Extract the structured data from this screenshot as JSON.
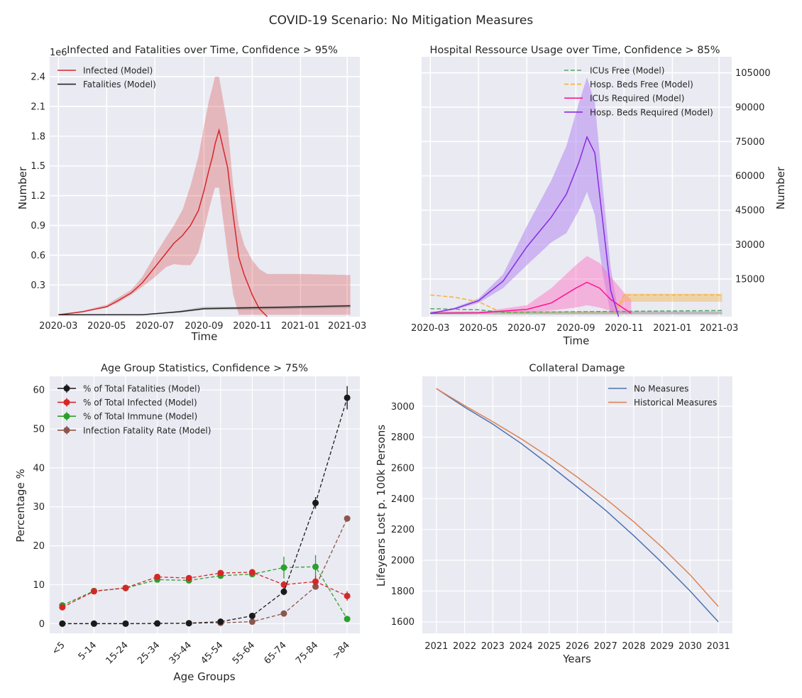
{
  "figure": {
    "title": "COVID-19 Scenario: No Mitigation Measures"
  },
  "colors": {
    "panel_bg": "#eaeaf2",
    "infected": "#d62728",
    "fatalities": "#262626",
    "icus_free": "#55a868",
    "beds_free": "#f6b23a",
    "icus_required": "#ff1493",
    "beds_required": "#8a2be2",
    "age_fatalities": "#1a1a1a",
    "age_infected": "#d62728",
    "age_immune": "#2ca02c",
    "age_ifr": "#8c564b",
    "no_measures": "#4c72b0",
    "historical": "#dd8452"
  },
  "chart_data": [
    {
      "type": "line",
      "title": "Infected and Fatalities over Time, Confidence > 95%",
      "xlabel": "Time",
      "ylabel": "Number",
      "offset_label": "1e6",
      "xlim": [
        "2020-02-19",
        "2021-03-17"
      ],
      "ylim": [
        -0.02,
        2.6
      ],
      "x_ticks": [
        "2020-03",
        "2020-05",
        "2020-07",
        "2020-09",
        "2020-11",
        "2021-01",
        "2021-03"
      ],
      "y_ticks": [
        0.3,
        0.6,
        0.9,
        1.2,
        1.5,
        1.8,
        2.1,
        2.4
      ],
      "legend": "upper-left",
      "series": [
        {
          "name": "Infected (Model)",
          "x": [
            "2020-03-01",
            "2020-04-01",
            "2020-05-01",
            "2020-05-15",
            "2020-06-01",
            "2020-06-15",
            "2020-07-01",
            "2020-07-15",
            "2020-07-25",
            "2020-08-05",
            "2020-08-15",
            "2020-08-25",
            "2020-09-01",
            "2020-09-07",
            "2020-09-12",
            "2020-09-15",
            "2020-09-20",
            "2020-10-01",
            "2020-10-08",
            "2020-10-15",
            "2020-10-22",
            "2020-11-01",
            "2020-11-10",
            "2020-11-20"
          ],
          "y": [
            0.0,
            0.03,
            0.08,
            0.14,
            0.22,
            0.32,
            0.48,
            0.62,
            0.72,
            0.8,
            0.9,
            1.05,
            1.25,
            1.45,
            1.6,
            1.72,
            1.86,
            1.48,
            1.0,
            0.58,
            0.4,
            0.2,
            0.06,
            -0.02
          ],
          "band_low": [
            0.0,
            0.03,
            0.07,
            0.12,
            0.2,
            0.28,
            0.38,
            0.48,
            0.51,
            0.5,
            0.5,
            0.63,
            0.85,
            1.05,
            1.2,
            1.28,
            1.28,
            0.6,
            0.2,
            0.0,
            0.0,
            0.0,
            0.0,
            0.0
          ],
          "band_high": [
            0.0,
            0.04,
            0.1,
            0.17,
            0.25,
            0.38,
            0.6,
            0.78,
            0.9,
            1.06,
            1.3,
            1.6,
            1.9,
            2.15,
            2.3,
            2.4,
            2.4,
            1.9,
            1.3,
            0.9,
            0.7,
            0.55,
            0.46,
            0.41
          ]
        },
        {
          "name": "Fatalities (Model)",
          "x": [
            "2020-03-01",
            "2020-06-15",
            "2020-08-01",
            "2020-09-01",
            "2020-11-01",
            "2021-01-01",
            "2021-03-05"
          ],
          "y": [
            0.0,
            0.0,
            0.03,
            0.06,
            0.07,
            0.078,
            0.09
          ],
          "band_low": [
            0.0,
            0.0,
            0.02,
            0.05,
            0.05,
            0.06,
            0.07
          ],
          "band_high": [
            0.0,
            0.0,
            0.04,
            0.08,
            0.08,
            0.09,
            0.1
          ]
        }
      ],
      "tail_band": {
        "x": [
          "2020-11-20",
          "2021-01-01",
          "2021-03-05"
        ],
        "high": [
          0.41,
          0.41,
          0.4
        ]
      }
    },
    {
      "type": "line",
      "title": "Hospital Ressource Usage over Time, Confidence > 85%",
      "xlabel": "Time",
      "ylabel": "Number",
      "xlim": [
        "2020-02-19",
        "2021-03-17"
      ],
      "ylim": [
        -1500,
        112000
      ],
      "x_ticks": [
        "2020-03",
        "2020-05",
        "2020-07",
        "2020-09",
        "2020-11",
        "2021-01",
        "2021-03"
      ],
      "y_ticks": [
        15000,
        30000,
        45000,
        60000,
        75000,
        90000,
        105000
      ],
      "legend": "upper-right",
      "series": [
        {
          "name": "ICUs Free (Model)",
          "style": "dashed",
          "x": [
            "2020-03-01",
            "2020-05-01",
            "2020-06-01",
            "2021-03-05"
          ],
          "y": [
            2000,
            1500,
            400,
            1200
          ]
        },
        {
          "name": "Hosp. Beds Free (Model)",
          "style": "dashed",
          "x": [
            "2020-03-01",
            "2020-04-01",
            "2020-05-01",
            "2020-05-20",
            "2020-06-01",
            "2020-10-20",
            "2020-11-01",
            "2021-03-05"
          ],
          "y": [
            8000,
            7000,
            5000,
            2000,
            0,
            0,
            8000,
            8000
          ]
        },
        {
          "name": "ICUs Required (Model)",
          "x": [
            "2020-03-01",
            "2020-05-01",
            "2020-07-01",
            "2020-08-01",
            "2020-09-01",
            "2020-09-15",
            "2020-10-01",
            "2020-10-15",
            "2020-11-01",
            "2020-11-10"
          ],
          "y": [
            0,
            200,
            1700,
            4500,
            11000,
            13500,
            11000,
            6000,
            2000,
            0
          ],
          "band_low": [
            0,
            100,
            500,
            1200,
            2500,
            3500,
            2500,
            1000,
            0,
            0
          ],
          "band_high": [
            0,
            500,
            3500,
            11000,
            21000,
            25000,
            22000,
            16000,
            9000,
            6000
          ]
        },
        {
          "name": "Hosp. Beds Required (Model)",
          "x": [
            "2020-03-01",
            "2020-04-01",
            "2020-05-01",
            "2020-06-01",
            "2020-07-01",
            "2020-08-01",
            "2020-08-20",
            "2020-09-05",
            "2020-09-15",
            "2020-09-25",
            "2020-10-05",
            "2020-10-15",
            "2020-10-25"
          ],
          "y": [
            0,
            2000,
            5500,
            14000,
            29000,
            42000,
            52000,
            66000,
            77000,
            70000,
            40000,
            10000,
            -1500
          ],
          "band_low": [
            0,
            1500,
            4500,
            11000,
            21000,
            31000,
            35000,
            45000,
            53000,
            43000,
            17000,
            0,
            0
          ],
          "band_high": [
            0,
            2500,
            6500,
            17000,
            38000,
            58000,
            73000,
            92000,
            103000,
            92000,
            55000,
            20000,
            0
          ]
        }
      ],
      "beds_free_band": {
        "x": [
          "2020-10-20",
          "2020-11-01",
          "2021-03-05"
        ],
        "low": [
          0,
          5000,
          5000
        ],
        "high": [
          0,
          8500,
          8500
        ]
      }
    },
    {
      "type": "line",
      "title": "Age Group Statistics, Confidence > 75%",
      "xlabel": "Age Groups",
      "ylabel": "Percentage %",
      "ylim": [
        -2.5,
        63.5
      ],
      "y_ticks": [
        0,
        10,
        20,
        30,
        40,
        50,
        60
      ],
      "categories": [
        "<5",
        "5-14",
        "15-24",
        "25-34",
        "35-44",
        "45-54",
        "55-64",
        "65-74",
        "75-84",
        ">84"
      ],
      "legend": "upper-left",
      "series": [
        {
          "name": "% of Total Fatalities (Model)",
          "values": [
            0,
            0,
            0,
            0.05,
            0.1,
            0.5,
            2,
            8.2,
            31,
            58
          ],
          "errors": [
            0,
            0,
            0,
            0,
            0,
            0.2,
            0.4,
            0.9,
            1.5,
            3
          ]
        },
        {
          "name": "% of Total Infected (Model)",
          "values": [
            4.2,
            8.3,
            9.2,
            12,
            11.7,
            13,
            13.2,
            10,
            10.8,
            7.1
          ],
          "errors": [
            0.5,
            0.5,
            0.5,
            0.5,
            0.5,
            0.5,
            0.5,
            1,
            1.5,
            1.2
          ]
        },
        {
          "name": "% of Total Immune (Model)",
          "values": [
            4.7,
            8.4,
            9.1,
            11.3,
            11.1,
            12.3,
            12.7,
            14.4,
            14.6,
            1.2
          ],
          "errors": [
            0.5,
            0.4,
            0.4,
            0.5,
            0.5,
            0.6,
            0.5,
            2.8,
            3,
            0.4
          ]
        },
        {
          "name": "Infection Fatality Rate (Model)",
          "values": [
            0,
            0,
            0,
            0.05,
            0.1,
            0.2,
            0.5,
            2.6,
            9.5,
            27
          ],
          "errors": [
            0,
            0,
            0,
            0,
            0,
            0,
            0.1,
            0.2,
            0.4,
            0.6
          ]
        }
      ]
    },
    {
      "type": "line",
      "title": "Collateral Damage",
      "xlabel": "Years",
      "ylabel": "Lifeyears Lost p. 100k Persons",
      "xlim": [
        2020.5,
        2031.5
      ],
      "ylim": [
        1525,
        3195
      ],
      "x_ticks": [
        2021,
        2022,
        2023,
        2024,
        2025,
        2026,
        2027,
        2028,
        2029,
        2030,
        2031
      ],
      "y_ticks": [
        1600,
        1800,
        2000,
        2200,
        2400,
        2600,
        2800,
        3000
      ],
      "legend": "upper-right",
      "series": [
        {
          "name": "No Measures",
          "x": [
            2021,
            2022,
            2023,
            2024,
            2025,
            2026,
            2027,
            2028,
            2029,
            2030,
            2031
          ],
          "y": [
            3115,
            2995,
            2885,
            2760,
            2620,
            2475,
            2325,
            2160,
            1985,
            1800,
            1600
          ]
        },
        {
          "name": "Historical Measures",
          "x": [
            2021,
            2022,
            2023,
            2024,
            2025,
            2026,
            2027,
            2028,
            2029,
            2030,
            2031
          ],
          "y": [
            3115,
            3005,
            2900,
            2790,
            2670,
            2540,
            2400,
            2250,
            2085,
            1905,
            1700
          ]
        }
      ]
    }
  ]
}
